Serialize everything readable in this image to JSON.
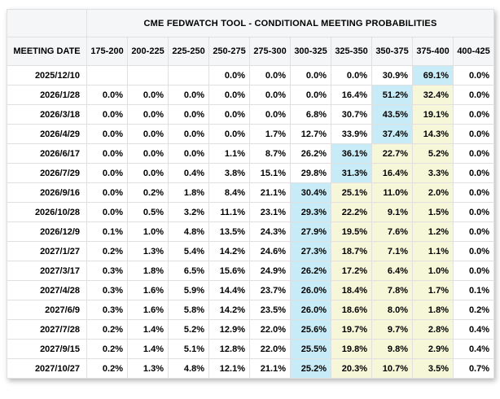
{
  "chart_data": {
    "type": "table",
    "title": "CME FEDWATCH TOOL - CONDITIONAL MEETING PROBABILITIES",
    "row_header": "MEETING DATE",
    "columns": [
      "175-200",
      "200-225",
      "225-250",
      "250-275",
      "275-300",
      "300-325",
      "325-350",
      "350-375",
      "375-400",
      "400-425"
    ],
    "highlight_legend": {
      "b": "highest-probability-cell (light blue)",
      "y": "cells-between-max-and-current-rate (pale yellow)"
    },
    "rows": [
      {
        "date": "2025/12/10",
        "values": [
          "",
          "",
          "",
          "0.0%",
          "0.0%",
          "0.0%",
          "0.0%",
          "30.9%",
          "69.1%",
          "0.0%"
        ],
        "highlights": [
          "",
          "",
          "",
          "",
          "",
          "",
          "",
          "",
          "b",
          ""
        ]
      },
      {
        "date": "2026/1/28",
        "values": [
          "0.0%",
          "0.0%",
          "0.0%",
          "0.0%",
          "0.0%",
          "0.0%",
          "16.4%",
          "51.2%",
          "32.4%",
          "0.0%"
        ],
        "highlights": [
          "",
          "",
          "",
          "",
          "",
          "",
          "",
          "b",
          "y",
          ""
        ]
      },
      {
        "date": "2026/3/18",
        "values": [
          "0.0%",
          "0.0%",
          "0.0%",
          "0.0%",
          "0.0%",
          "6.8%",
          "30.7%",
          "43.5%",
          "19.1%",
          "0.0%"
        ],
        "highlights": [
          "",
          "",
          "",
          "",
          "",
          "",
          "",
          "b",
          "y",
          ""
        ]
      },
      {
        "date": "2026/4/29",
        "values": [
          "0.0%",
          "0.0%",
          "0.0%",
          "0.0%",
          "1.7%",
          "12.7%",
          "33.9%",
          "37.4%",
          "14.3%",
          "0.0%"
        ],
        "highlights": [
          "",
          "",
          "",
          "",
          "",
          "",
          "",
          "b",
          "y",
          ""
        ]
      },
      {
        "date": "2026/6/17",
        "values": [
          "0.0%",
          "0.0%",
          "0.0%",
          "1.1%",
          "8.7%",
          "26.2%",
          "36.1%",
          "22.7%",
          "5.2%",
          "0.0%"
        ],
        "highlights": [
          "",
          "",
          "",
          "",
          "",
          "",
          "b",
          "y",
          "y",
          ""
        ]
      },
      {
        "date": "2026/7/29",
        "values": [
          "0.0%",
          "0.0%",
          "0.4%",
          "3.8%",
          "15.1%",
          "29.8%",
          "31.3%",
          "16.4%",
          "3.3%",
          "0.0%"
        ],
        "highlights": [
          "",
          "",
          "",
          "",
          "",
          "",
          "b",
          "y",
          "y",
          ""
        ]
      },
      {
        "date": "2026/9/16",
        "values": [
          "0.0%",
          "0.2%",
          "1.8%",
          "8.4%",
          "21.1%",
          "30.4%",
          "25.1%",
          "11.0%",
          "2.0%",
          "0.0%"
        ],
        "highlights": [
          "",
          "",
          "",
          "",
          "",
          "b",
          "y",
          "y",
          "y",
          ""
        ]
      },
      {
        "date": "2026/10/28",
        "values": [
          "0.0%",
          "0.5%",
          "3.2%",
          "11.1%",
          "23.1%",
          "29.3%",
          "22.2%",
          "9.1%",
          "1.5%",
          "0.0%"
        ],
        "highlights": [
          "",
          "",
          "",
          "",
          "",
          "b",
          "y",
          "y",
          "y",
          ""
        ]
      },
      {
        "date": "2026/12/9",
        "values": [
          "0.1%",
          "1.0%",
          "4.8%",
          "13.5%",
          "24.3%",
          "27.9%",
          "19.5%",
          "7.6%",
          "1.2%",
          "0.0%"
        ],
        "highlights": [
          "",
          "",
          "",
          "",
          "",
          "b",
          "y",
          "y",
          "y",
          ""
        ]
      },
      {
        "date": "2027/1/27",
        "values": [
          "0.2%",
          "1.3%",
          "5.4%",
          "14.2%",
          "24.6%",
          "27.3%",
          "18.7%",
          "7.1%",
          "1.1%",
          "0.0%"
        ],
        "highlights": [
          "",
          "",
          "",
          "",
          "",
          "b",
          "y",
          "y",
          "y",
          ""
        ]
      },
      {
        "date": "2027/3/17",
        "values": [
          "0.3%",
          "1.8%",
          "6.5%",
          "15.6%",
          "24.9%",
          "26.2%",
          "17.2%",
          "6.4%",
          "1.0%",
          "0.0%"
        ],
        "highlights": [
          "",
          "",
          "",
          "",
          "",
          "b",
          "y",
          "y",
          "y",
          ""
        ]
      },
      {
        "date": "2027/4/28",
        "values": [
          "0.3%",
          "1.6%",
          "5.9%",
          "14.4%",
          "23.7%",
          "26.0%",
          "18.4%",
          "7.8%",
          "1.7%",
          "0.1%"
        ],
        "highlights": [
          "",
          "",
          "",
          "",
          "",
          "b",
          "y",
          "y",
          "y",
          ""
        ]
      },
      {
        "date": "2027/6/9",
        "values": [
          "0.3%",
          "1.6%",
          "5.8%",
          "14.2%",
          "23.5%",
          "26.0%",
          "18.6%",
          "8.0%",
          "1.8%",
          "0.2%"
        ],
        "highlights": [
          "",
          "",
          "",
          "",
          "",
          "b",
          "y",
          "y",
          "y",
          ""
        ]
      },
      {
        "date": "2027/7/28",
        "values": [
          "0.2%",
          "1.4%",
          "5.2%",
          "12.9%",
          "22.0%",
          "25.6%",
          "19.7%",
          "9.7%",
          "2.8%",
          "0.4%"
        ],
        "highlights": [
          "",
          "",
          "",
          "",
          "",
          "b",
          "y",
          "y",
          "y",
          ""
        ]
      },
      {
        "date": "2027/9/15",
        "values": [
          "0.2%",
          "1.4%",
          "5.1%",
          "12.8%",
          "22.0%",
          "25.5%",
          "19.8%",
          "9.8%",
          "2.9%",
          "0.4%"
        ],
        "highlights": [
          "",
          "",
          "",
          "",
          "",
          "b",
          "y",
          "y",
          "y",
          ""
        ]
      },
      {
        "date": "2027/10/27",
        "values": [
          "0.2%",
          "1.3%",
          "4.8%",
          "12.1%",
          "21.1%",
          "25.2%",
          "20.3%",
          "10.7%",
          "3.5%",
          "0.7%"
        ],
        "highlights": [
          "",
          "",
          "",
          "",
          "",
          "b",
          "y",
          "y",
          "y",
          ""
        ]
      }
    ]
  },
  "colors": {
    "highlight_blue": "#c8ecf7",
    "highlight_yellow": "#f6f6d8",
    "header_bg": "#f5f6f7",
    "inner_border": "#e0e0e0",
    "outer_border": "#cfcfcf",
    "text": "#000000"
  }
}
